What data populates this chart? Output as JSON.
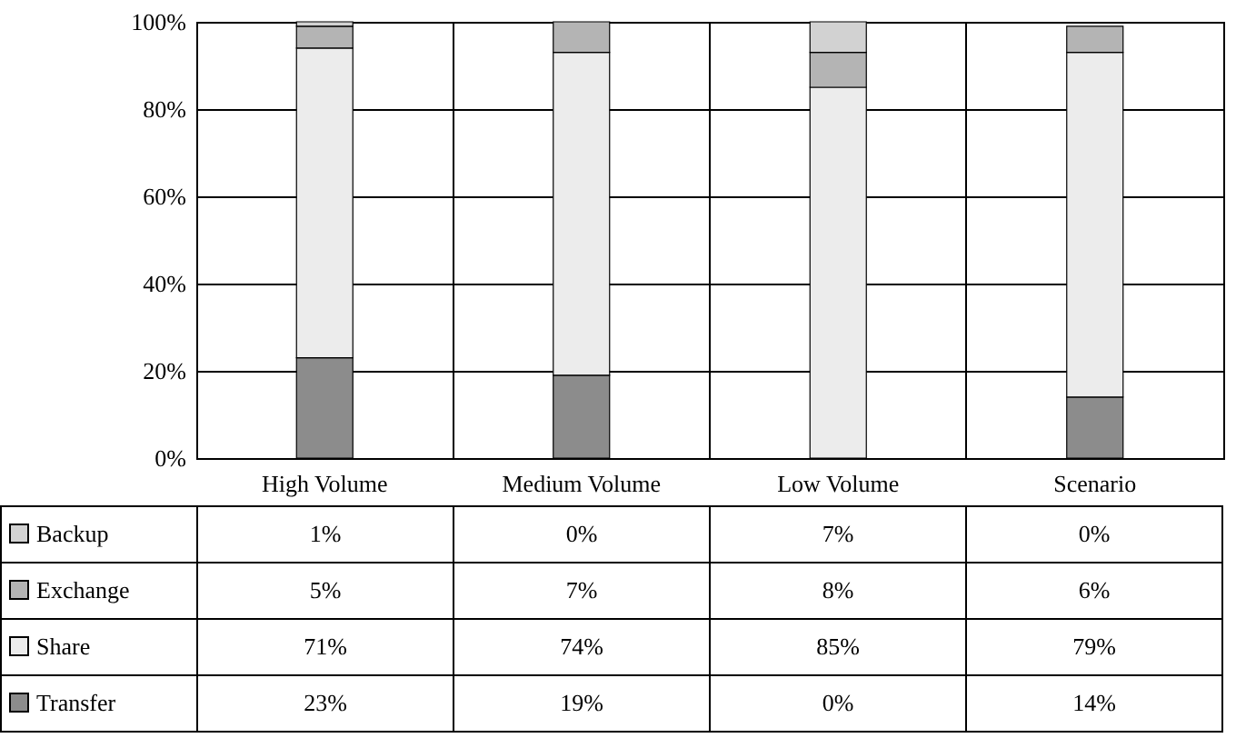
{
  "chart_data": {
    "type": "bar",
    "stacked": true,
    "categories": [
      "High Volume",
      "Medium Volume",
      "Low Volume",
      "Scenario"
    ],
    "series": [
      {
        "name": "Transfer",
        "color": "#8c8c8c",
        "values": [
          23,
          19,
          0,
          14
        ],
        "value_labels": [
          "23%",
          "19%",
          "0%",
          "14%"
        ]
      },
      {
        "name": "Share",
        "color": "#ececec",
        "values": [
          71,
          74,
          85,
          79
        ],
        "value_labels": [
          "71%",
          "74%",
          "85%",
          "79%"
        ]
      },
      {
        "name": "Exchange",
        "color": "#b4b4b4",
        "values": [
          5,
          7,
          8,
          6
        ],
        "value_labels": [
          "5%",
          "7%",
          "8%",
          "6%"
        ]
      },
      {
        "name": "Backup",
        "color": "#d2d2d2",
        "values": [
          1,
          0,
          7,
          0
        ],
        "value_labels": [
          "1%",
          "0%",
          "7%",
          "0%"
        ]
      }
    ],
    "ylim": [
      0,
      100
    ],
    "yticks": [
      {
        "value": 0,
        "label": "0%"
      },
      {
        "value": 20,
        "label": "20%"
      },
      {
        "value": 40,
        "label": "40%"
      },
      {
        "value": 60,
        "label": "60%"
      },
      {
        "value": 80,
        "label": "80%"
      },
      {
        "value": 100,
        "label": "100%"
      }
    ],
    "grid": true,
    "legend": "bottom"
  }
}
